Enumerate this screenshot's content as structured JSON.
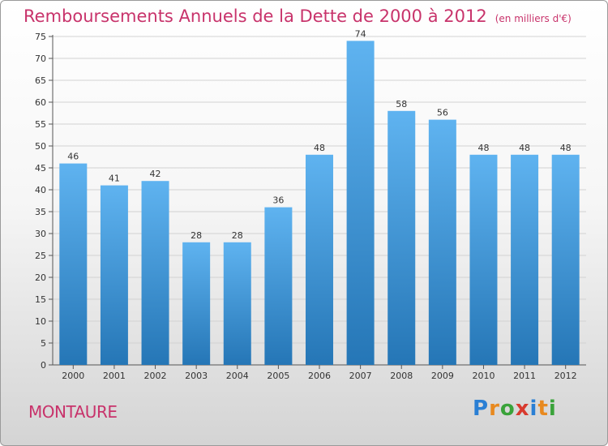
{
  "header": {
    "title": "Remboursements Annuels de la Dette de 2000 à 2012",
    "unit": "(en milliers d'€)"
  },
  "footer": {
    "location": "MONTAURE",
    "logo_text": "Proxiti"
  },
  "colors": {
    "title": "#c8336b",
    "bar_top": "#5fb3f0",
    "bar_bottom": "#2576b6",
    "logo": [
      "#2a7fd4",
      "#e8891f",
      "#3aa33a",
      "#d83a2e",
      "#2a7fd4",
      "#e8891f",
      "#3aa33a"
    ]
  },
  "chart_data": {
    "type": "bar",
    "title": "Remboursements Annuels de la Dette de 2000 à 2012",
    "unit": "(en milliers d'€)",
    "categories": [
      "2000",
      "2001",
      "2002",
      "2003",
      "2004",
      "2005",
      "2006",
      "2007",
      "2008",
      "2009",
      "2010",
      "2011",
      "2012"
    ],
    "values": [
      46,
      41,
      42,
      28,
      28,
      36,
      48,
      74,
      58,
      56,
      48,
      48,
      48
    ],
    "ylim": [
      0,
      75
    ],
    "yticks": [
      0,
      5,
      10,
      15,
      20,
      25,
      30,
      35,
      40,
      45,
      50,
      55,
      60,
      65,
      70,
      75
    ],
    "grid": true,
    "data_labels": true
  }
}
